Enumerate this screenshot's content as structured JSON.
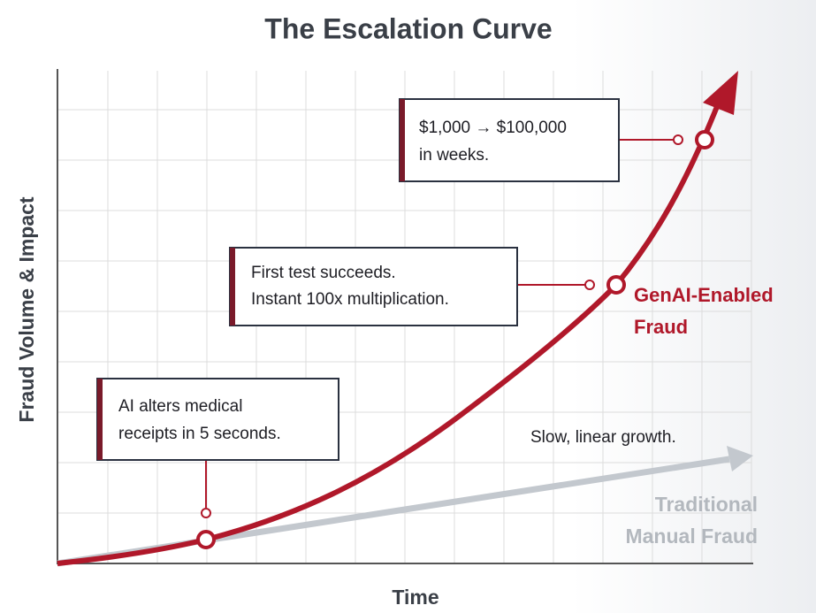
{
  "title": "The Escalation Curve",
  "y_axis_label": "Fraud Volume & Impact",
  "x_axis_label": "Time",
  "callouts": [
    {
      "lines": [
        "AI alters medical",
        "receipts in 5 seconds."
      ]
    },
    {
      "lines": [
        "First test succeeds.",
        "Instant 100x multiplication."
      ]
    },
    {
      "lines": [
        "$1,000 → $100,000",
        "in weeks."
      ]
    }
  ],
  "series_labels": {
    "genai": [
      "GenAI-Enabled",
      "Fraud"
    ],
    "traditional_note": "Slow, linear growth.",
    "traditional": [
      "Traditional",
      "Manual Fraud"
    ]
  }
}
